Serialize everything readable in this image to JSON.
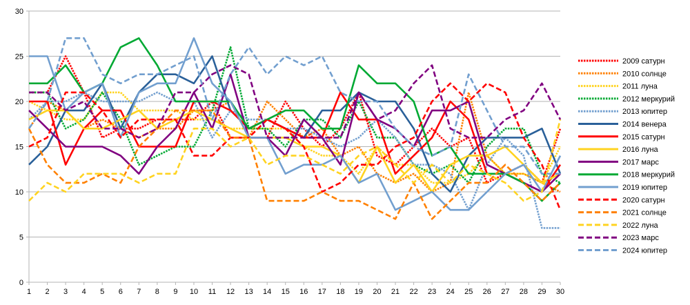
{
  "chart_data": {
    "type": "line",
    "title": "",
    "xlabel": "",
    "ylabel": "",
    "x": [
      1,
      2,
      3,
      4,
      5,
      6,
      7,
      8,
      9,
      10,
      11,
      12,
      13,
      14,
      15,
      16,
      17,
      18,
      19,
      20,
      21,
      22,
      23,
      24,
      25,
      26,
      27,
      28,
      29,
      30
    ],
    "ylim": [
      0,
      30
    ],
    "yticks": [
      0,
      5,
      10,
      15,
      20,
      25,
      30
    ],
    "grid": "horizontal",
    "legend_position": "right",
    "series": [
      {
        "name": "2009 сатурн",
        "color": "#ff0000",
        "style": "dotted",
        "values": [
          21,
          21,
          25,
          21,
          16,
          17,
          17,
          18,
          18,
          18,
          20,
          16,
          16,
          16,
          20,
          17,
          15,
          17,
          21,
          14,
          13,
          15,
          17,
          15,
          16,
          11,
          12,
          13,
          11,
          17
        ]
      },
      {
        "name": "2010 солнце",
        "color": "#ff8000",
        "style": "dotted",
        "values": [
          17,
          20,
          19,
          17,
          18,
          17,
          16,
          17,
          17,
          19,
          19,
          20,
          16,
          20,
          18,
          16,
          17,
          14,
          15,
          12,
          11,
          12,
          10,
          11,
          21,
          14,
          12,
          12,
          11,
          10
        ]
      },
      {
        "name": "2011 луна",
        "color": "#ffd320",
        "style": "dotted",
        "values": [
          20,
          19,
          18,
          18,
          21,
          21,
          19,
          19,
          19,
          18,
          18,
          17,
          17,
          17,
          17,
          15,
          14,
          14,
          12,
          15,
          13,
          13,
          11,
          11,
          12,
          14,
          12,
          12,
          11,
          15
        ]
      },
      {
        "name": "2012 меркурий",
        "color": "#00a933",
        "style": "dotted",
        "values": [
          21,
          21,
          17,
          18,
          21,
          18,
          13,
          14,
          15,
          15,
          19,
          26,
          17,
          17,
          15,
          18,
          18,
          16,
          20,
          16,
          16,
          13,
          12,
          13,
          11,
          15,
          17,
          17,
          12,
          11
        ]
      },
      {
        "name": "2013 юпитер",
        "color": "#729fcf",
        "style": "dotted",
        "values": [
          18,
          20,
          20,
          21,
          20,
          20,
          20,
          21,
          20,
          20,
          16,
          19,
          18,
          18,
          17,
          17,
          16,
          15,
          16,
          18,
          16,
          13,
          13,
          12,
          8,
          13,
          16,
          14,
          6,
          6
        ]
      },
      {
        "name": "2014 венера",
        "color": "#2a6099",
        "style": "solid",
        "values": [
          13,
          15,
          19,
          19,
          22,
          17,
          21,
          23,
          23,
          22,
          25,
          19,
          17,
          18,
          17,
          16,
          19,
          19,
          21,
          20,
          20,
          17,
          12,
          10,
          14,
          16,
          16,
          16,
          17,
          12
        ]
      },
      {
        "name": "2015 сатурн",
        "color": "#ff0000",
        "style": "solid",
        "values": [
          20,
          20,
          13,
          17,
          19,
          19,
          15,
          15,
          15,
          20,
          20,
          19,
          17,
          18,
          17,
          16,
          16,
          21,
          18,
          18,
          12,
          14,
          16,
          20,
          18,
          12,
          12,
          11,
          10,
          13
        ]
      },
      {
        "name": "2016 луна",
        "color": "#ffd320",
        "style": "solid",
        "values": [
          18,
          19,
          19,
          17,
          17,
          18,
          19,
          17,
          18,
          19,
          18,
          17,
          16,
          16,
          16,
          15,
          15,
          14,
          11,
          15,
          11,
          13,
          10,
          13,
          14,
          14,
          15,
          13,
          11,
          12
        ]
      },
      {
        "name": "2017 марс",
        "color": "#800080",
        "style": "solid",
        "values": [
          19,
          17,
          15,
          15,
          15,
          14,
          12,
          15,
          17,
          21,
          17,
          23,
          16,
          16,
          14,
          18,
          16,
          13,
          21,
          18,
          17,
          15,
          19,
          19,
          20,
          13,
          12,
          11,
          10,
          12
        ]
      },
      {
        "name": "2018 меркурий",
        "color": "#00a933",
        "style": "solid",
        "values": [
          22,
          22,
          24,
          21,
          22,
          26,
          27,
          24,
          20,
          20,
          20,
          20,
          17,
          18,
          19,
          19,
          17,
          17,
          24,
          22,
          22,
          20,
          14,
          15,
          12,
          12,
          12,
          11,
          9,
          11
        ]
      },
      {
        "name": "2019 юпитер",
        "color": "#729fcf",
        "style": "solid",
        "values": [
          25,
          25,
          19,
          21,
          22,
          16,
          21,
          22,
          22,
          27,
          22,
          20,
          16,
          16,
          12,
          13,
          13,
          14,
          11,
          12,
          8,
          9,
          10,
          8,
          8,
          10,
          12,
          13,
          10,
          14
        ]
      },
      {
        "name": "2020 сатурн",
        "color": "#ff0000",
        "style": "dashed",
        "values": [
          15,
          16,
          21,
          21,
          19,
          16,
          18,
          18,
          18,
          14,
          14,
          16,
          16,
          18,
          17,
          15,
          10,
          11,
          13,
          13,
          15,
          16,
          20,
          22,
          20,
          22,
          21,
          16,
          13,
          8
        ]
      },
      {
        "name": "2021 солнце",
        "color": "#ff8000",
        "style": "dashed",
        "values": [
          17,
          13,
          11,
          11,
          12,
          11,
          15,
          17,
          19,
          19,
          19,
          16,
          16,
          9,
          9,
          9,
          10,
          9,
          9,
          8,
          7,
          11,
          7,
          9,
          11,
          11,
          13,
          11,
          9,
          11
        ]
      },
      {
        "name": "2022 луна",
        "color": "#ffd320",
        "style": "dashed",
        "values": [
          9,
          11,
          10,
          12,
          12,
          12,
          11,
          12,
          12,
          17,
          17,
          15,
          16,
          13,
          14,
          14,
          13,
          12,
          14,
          15,
          13,
          11,
          13,
          11,
          13,
          12,
          11,
          9,
          10,
          18
        ]
      },
      {
        "name": "2023 марс",
        "color": "#800080",
        "style": "dashed",
        "values": [
          21,
          21,
          19,
          20,
          17,
          17,
          16,
          17,
          21,
          21,
          23,
          24,
          23,
          16,
          16,
          16,
          16,
          16,
          21,
          18,
          19,
          22,
          24,
          17,
          16,
          16,
          18,
          19,
          22,
          18
        ]
      },
      {
        "name": "2024 юпитер",
        "color": "#729fcf",
        "style": "dashed",
        "values": [
          17,
          20,
          27,
          27,
          23,
          22,
          23,
          23,
          24,
          25,
          18,
          23,
          26,
          23,
          25,
          24,
          25,
          21,
          20,
          20,
          17,
          15,
          14,
          15,
          23,
          19,
          15,
          15,
          12,
          12
        ]
      }
    ]
  }
}
